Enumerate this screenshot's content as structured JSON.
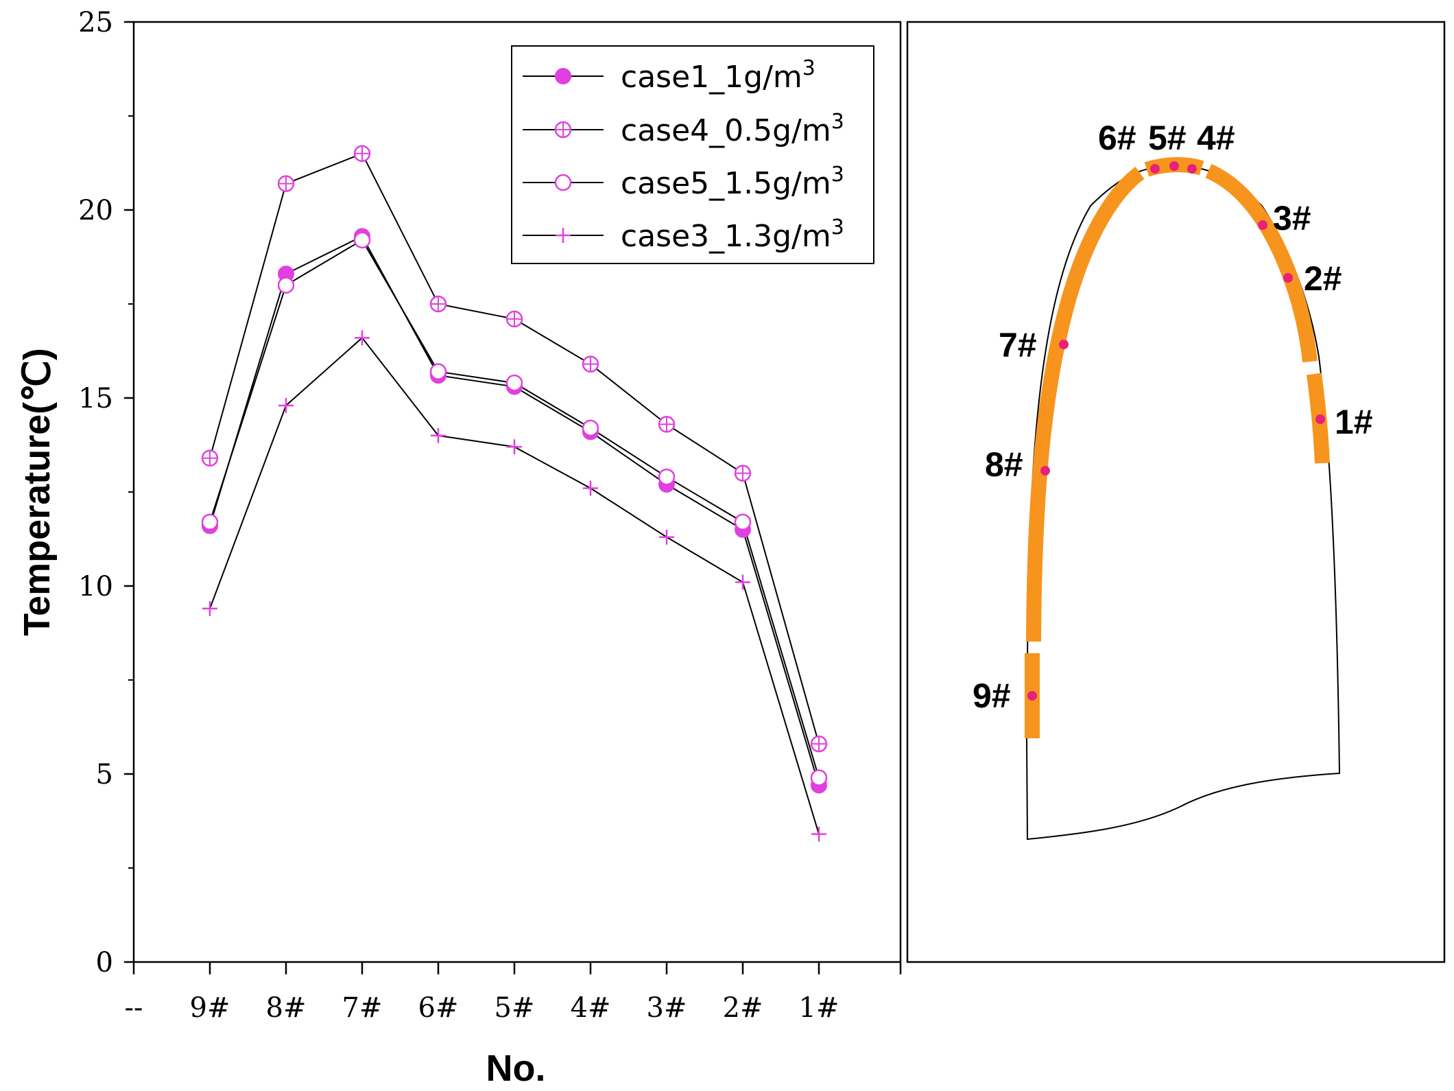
{
  "chart_data": {
    "type": "line",
    "title": "",
    "xlabel": "No.",
    "ylabel": "Temperature(℃)",
    "ylim": [
      0,
      25
    ],
    "yticks": [
      "0",
      "5",
      "10",
      "15",
      "20",
      "25"
    ],
    "x_first_tick": "--",
    "categories": [
      "9#",
      "8#",
      "7#",
      "6#",
      "5#",
      "4#",
      "3#",
      "2#",
      "1#"
    ],
    "series": [
      {
        "name": "case1_1g/m",
        "sup": "3",
        "marker": "filled-circle",
        "values": [
          11.6,
          18.3,
          19.3,
          15.6,
          15.3,
          14.1,
          12.7,
          11.5,
          4.7
        ]
      },
      {
        "name": "case4_0.5g/m",
        "sup": "3",
        "marker": "circle-plus",
        "values": [
          13.4,
          20.7,
          21.5,
          17.5,
          17.1,
          15.9,
          14.3,
          13.0,
          5.8
        ]
      },
      {
        "name": "case5_1.5g/m",
        "sup": "3",
        "marker": "open-circle",
        "values": [
          11.7,
          18.0,
          19.2,
          15.7,
          15.4,
          14.2,
          12.9,
          11.7,
          4.9
        ]
      },
      {
        "name": "case3_1.3g/m",
        "sup": "3",
        "marker": "plus",
        "values": [
          9.4,
          14.8,
          16.6,
          14.0,
          13.7,
          12.6,
          11.3,
          10.1,
          3.4
        ]
      }
    ],
    "legend_position": "top-right",
    "grid": false
  },
  "diagram": {
    "labels": [
      "6#",
      "5#",
      "4#",
      "3#",
      "2#",
      "7#",
      "1#",
      "8#",
      "9#"
    ]
  },
  "colors": {
    "marker": "#e040e0",
    "sensor_dot": "#e8207a",
    "lining": "#f7941d",
    "line": "#000000"
  }
}
